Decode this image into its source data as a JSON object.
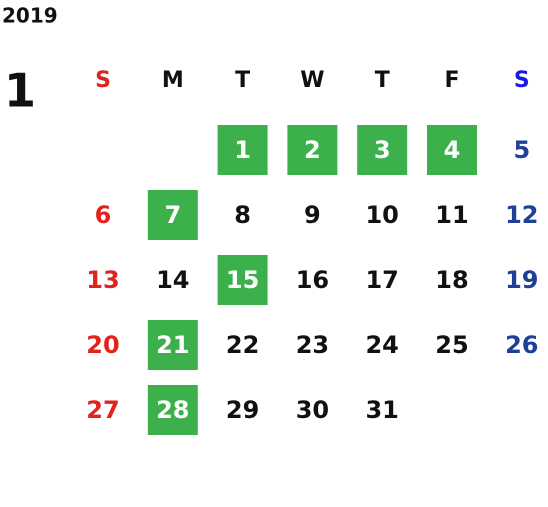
{
  "year": "2019",
  "month": "1",
  "weekdays": [
    "S",
    "M",
    "T",
    "W",
    "T",
    "F",
    "S"
  ],
  "weeks": [
    [
      null,
      null,
      1,
      2,
      3,
      4,
      5
    ],
    [
      6,
      7,
      8,
      9,
      10,
      11,
      12
    ],
    [
      13,
      14,
      15,
      16,
      17,
      18,
      19
    ],
    [
      20,
      21,
      22,
      23,
      24,
      25,
      26
    ],
    [
      27,
      28,
      29,
      30,
      31,
      null,
      null
    ]
  ],
  "highlighted_days": [
    1,
    2,
    3,
    4,
    7,
    15,
    21,
    28
  ],
  "colors": {
    "sunday": "#e0231c",
    "saturday": "#1f3f99",
    "saturday_header": "#1a1ae6",
    "weekday": "#111111",
    "highlight": "#3cb04a",
    "highlight_text": "#ffffff"
  }
}
